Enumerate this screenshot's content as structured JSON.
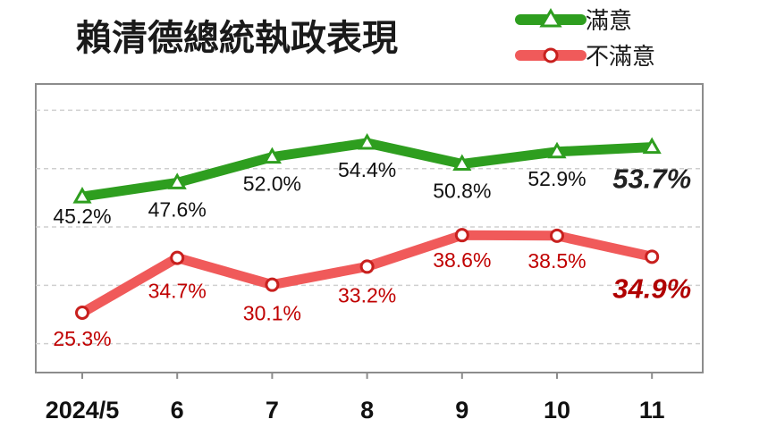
{
  "chart_data": {
    "type": "line",
    "title": "賴清德總統執政表現",
    "categories": [
      "2024/5",
      "6",
      "7",
      "8",
      "9",
      "10",
      "11"
    ],
    "series": [
      {
        "name": "滿意",
        "values": [
          45.2,
          47.6,
          52.0,
          54.4,
          50.8,
          52.9,
          53.7
        ],
        "labels": [
          "45.2%",
          "47.6%",
          "52.0%",
          "54.4%",
          "50.8%",
          "52.9%",
          "53.7%"
        ],
        "color": "#2e9e1f",
        "marker": "triangle"
      },
      {
        "name": "不滿意",
        "values": [
          25.3,
          34.7,
          30.1,
          33.2,
          38.6,
          38.5,
          34.9
        ],
        "labels": [
          "25.3%",
          "34.7%",
          "30.1%",
          "33.2%",
          "38.6%",
          "38.5%",
          "34.9%"
        ],
        "color": "#f05a5a",
        "marker": "circle"
      }
    ],
    "ylim": [
      15,
      65
    ],
    "grid": true,
    "legend_position": "top-right",
    "label_colors": {
      "滿意": "#111111",
      "不滿意": "#c00000"
    }
  }
}
